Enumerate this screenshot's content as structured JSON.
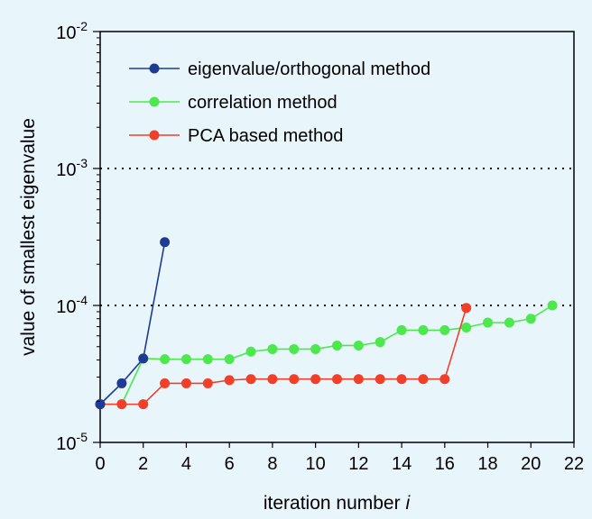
{
  "chart_data": {
    "type": "line",
    "xlabel": "iteration number",
    "xlabel_italic_suffix": "i",
    "ylabel": "value of smallest eigenvalue",
    "xlim": [
      0,
      22
    ],
    "ylim": [
      1e-05,
      0.01
    ],
    "yscale": "log",
    "x_ticks": [
      "0",
      "2",
      "4",
      "6",
      "8",
      "10",
      "12",
      "14",
      "16",
      "18",
      "20",
      "22"
    ],
    "y_ticks": [
      {
        "value": 1e-05,
        "base": "10",
        "exp": "-5"
      },
      {
        "value": 0.0001,
        "base": "10",
        "exp": "-4"
      },
      {
        "value": 0.001,
        "base": "10",
        "exp": "-3"
      },
      {
        "value": 0.01,
        "base": "10",
        "exp": "-2"
      }
    ],
    "reference_lines": [
      0.0001,
      0.001
    ],
    "legend_position": "top-left",
    "series": [
      {
        "name": "eigenvalue/orthogonal method",
        "color": "#1f3a93",
        "x": [
          0,
          1,
          2,
          3
        ],
        "y": [
          1.9e-05,
          2.7e-05,
          4.1e-05,
          0.00029
        ]
      },
      {
        "name": "correlation method",
        "color": "#4de84d",
        "x": [
          0,
          1,
          2,
          3,
          4,
          5,
          6,
          7,
          8,
          9,
          10,
          11,
          12,
          13,
          14,
          15,
          16,
          17,
          18,
          19,
          20,
          21
        ],
        "y": [
          1.9e-05,
          1.9e-05,
          4.1e-05,
          4.05e-05,
          4.05e-05,
          4.05e-05,
          4.05e-05,
          4.6e-05,
          4.8e-05,
          4.8e-05,
          4.8e-05,
          5.1e-05,
          5.1e-05,
          5.4e-05,
          6.6e-05,
          6.6e-05,
          6.6e-05,
          6.9e-05,
          7.5e-05,
          7.5e-05,
          8e-05,
          0.0001
        ]
      },
      {
        "name": "PCA based method",
        "color": "#f0402a",
        "x": [
          0,
          1,
          2,
          3,
          4,
          5,
          6,
          7,
          8,
          9,
          10,
          11,
          12,
          13,
          14,
          15,
          16,
          17
        ],
        "y": [
          1.9e-05,
          1.9e-05,
          1.9e-05,
          2.7e-05,
          2.7e-05,
          2.7e-05,
          2.85e-05,
          2.9e-05,
          2.9e-05,
          2.9e-05,
          2.9e-05,
          2.9e-05,
          2.9e-05,
          2.9e-05,
          2.9e-05,
          2.9e-05,
          2.9e-05,
          9.6e-05
        ]
      }
    ]
  }
}
